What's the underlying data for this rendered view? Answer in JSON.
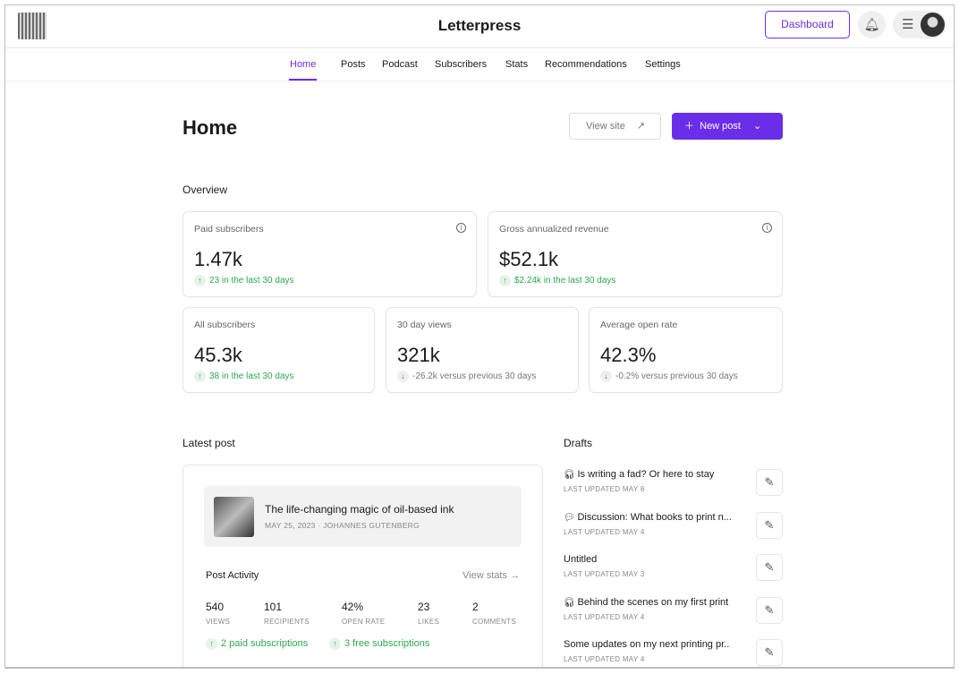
{
  "header": {
    "title": "Letterpress",
    "dashboard": "Dashboard"
  },
  "nav": [
    "Home",
    "Posts",
    "Podcast",
    "Subscribers",
    "Stats",
    "Recommendations",
    "Settings"
  ],
  "page": {
    "title": "Home",
    "view_site": "View site",
    "new_post": "New post"
  },
  "overview": {
    "heading": "Overview",
    "cards": [
      {
        "label": "Paid subscribers",
        "value": "1.47k",
        "delta": "23 in the last 30 days",
        "trend": "up"
      },
      {
        "label": "Gross annualized revenue",
        "value": "$52.1k",
        "delta": "$2.24k in the last 30 days",
        "trend": "up"
      },
      {
        "label": "All subscribers",
        "value": "45.3k",
        "delta": "38 in the last 30 days",
        "trend": "up"
      },
      {
        "label": "30 day views",
        "value": "321k",
        "delta": "-26.2k versus previous 30 days",
        "trend": "down"
      },
      {
        "label": "Average open rate",
        "value": "42.3%",
        "delta": "-0.2% versus previous 30 days",
        "trend": "down"
      }
    ]
  },
  "latest": {
    "heading": "Latest post",
    "title": "The life-changing magic of oil-based ink",
    "meta": "MAY 25, 2023 · JOHANNES GUTENBERG",
    "activity": "Post Activity",
    "view_stats": "View stats →",
    "stats": [
      {
        "v": "540",
        "l": "VIEWS"
      },
      {
        "v": "101",
        "l": "RECIPIENTS"
      },
      {
        "v": "42%",
        "l": "OPEN RATE"
      },
      {
        "v": "23",
        "l": "LIKES"
      },
      {
        "v": "2",
        "l": "COMMENTS"
      }
    ],
    "paid": "2 paid subscriptions",
    "free": "3 free subscriptions"
  },
  "drafts": {
    "heading": "Drafts",
    "items": [
      {
        "icon": "headphones-icon",
        "title": "Is writing a fad? Or here to stay",
        "updated": "LAST UPDATED MAY 8"
      },
      {
        "icon": "speech-bubble-icon",
        "title": "Discussion: What books to print n...",
        "updated": "LAST UPDATED MAY 4"
      },
      {
        "icon": "",
        "title": "Untitled",
        "updated": "LAST UPDATED MAY 3"
      },
      {
        "icon": "headphones-icon",
        "title": "Behind the scenes on my first print",
        "updated": "LAST UPDATED MAY 4"
      },
      {
        "icon": "",
        "title": "Some updates on my next printing pr..",
        "updated": "LAST UPDATED MAY 4"
      }
    ]
  },
  "colors": {
    "accent": "#6b2ee8",
    "positive": "#2ea84f"
  }
}
